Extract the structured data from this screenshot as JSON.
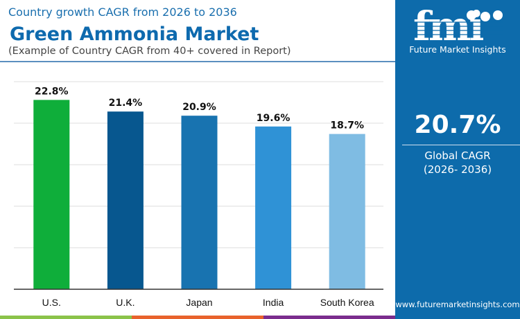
{
  "header": {
    "subtitle": "Country growth CAGR from 2026 to 2036",
    "title": "Green Ammonia Market",
    "note": "(Example of Country CAGR from 40+ covered in Report)"
  },
  "sidebar": {
    "brand": "Future Market Insights",
    "logo_text": "fmi",
    "global_value": "20.7%",
    "global_label": "Global CAGR",
    "global_period": "(2026- 2036)",
    "url": "www.futuremarketinsights.com",
    "bg_color": "#0d6bab"
  },
  "footer_colors": [
    "#8bc34a",
    "#e8622c",
    "#7b2d8e"
  ],
  "chart_data": {
    "type": "bar",
    "categories": [
      "U.S.",
      "U.K.",
      "Japan",
      "India",
      "South Korea"
    ],
    "values": [
      22.8,
      21.4,
      20.9,
      19.6,
      18.7
    ],
    "data_labels": [
      "22.8%",
      "21.4%",
      "20.9%",
      "19.6%",
      "18.7%"
    ],
    "colors": [
      "#0fae3a",
      "#07578f",
      "#1873b0",
      "#2f92d6",
      "#7fbce3"
    ],
    "ylim": [
      0,
      25
    ],
    "grid": true,
    "title": "",
    "xlabel": "",
    "ylabel": ""
  }
}
